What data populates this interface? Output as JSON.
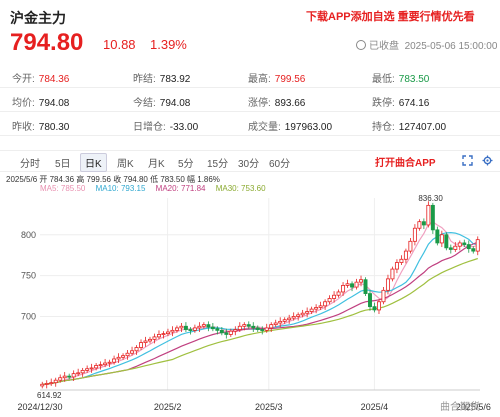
{
  "header": {
    "title": "沪金主力",
    "promo": "下载APP添加自选 重要行情优先看",
    "price": "794.80",
    "change": "10.88",
    "change_pct": "1.39%",
    "status": "已收盘",
    "datetime": "2025-05-06 15:00:00"
  },
  "stats": [
    [
      {
        "label": "今开:",
        "value": "784.36",
        "color": "red"
      },
      {
        "label": "昨结:",
        "value": "783.92",
        "color": ""
      },
      {
        "label": "最高:",
        "value": "799.56",
        "color": "red"
      },
      {
        "label": "最低:",
        "value": "783.50",
        "color": "green"
      }
    ],
    [
      {
        "label": "均价:",
        "value": "794.08",
        "color": ""
      },
      {
        "label": "今结:",
        "value": "794.08",
        "color": ""
      },
      {
        "label": "涨停:",
        "value": "893.66",
        "color": ""
      },
      {
        "label": "跌停:",
        "value": "674.16",
        "color": ""
      }
    ],
    [
      {
        "label": "昨收:",
        "value": "780.30",
        "color": ""
      },
      {
        "label": "日增仓:",
        "value": "-33.00",
        "color": ""
      },
      {
        "label": "成交量:",
        "value": "197963.00",
        "color": ""
      },
      {
        "label": "持仓:",
        "value": "127407.00",
        "color": ""
      }
    ]
  ],
  "tabs": [
    "分时",
    "5日",
    "日K",
    "周K",
    "月K",
    "5分",
    "15分",
    "30分",
    "60分"
  ],
  "active_tab": "日K",
  "open_app": "打开曲合APP",
  "chart_info": {
    "line1": "2025/5/6  开 784.36  高 799.56  收 794.80  低 783.50  幅 1.86%",
    "ma5": "MA5: 785.50",
    "ma10": "MA10: 793.15",
    "ma20": "MA20: 771.84",
    "ma30": "MA30: 753.60"
  },
  "watermark": "曲合期货",
  "colors": {
    "up": "#e62020",
    "down": "#1a9a48",
    "ma5": "#f0a0c0",
    "ma10": "#40c0e0",
    "ma20": "#c04080",
    "ma30": "#a0c040"
  },
  "chart_data": {
    "type": "candlestick",
    "x_ticks": [
      "2024/12/30",
      "2025/2",
      "2025/3",
      "2025/4",
      "2025/5/6"
    ],
    "y_ticks": [
      700,
      750,
      800
    ],
    "ylim": [
      610,
      845
    ],
    "annotations": [
      {
        "label": "836.30",
        "value": 836.3
      },
      {
        "label": "614.92",
        "value": 614.92
      }
    ],
    "closes": [
      617,
      618,
      619,
      622,
      625,
      627,
      626,
      630,
      631,
      634,
      636,
      637,
      640,
      641,
      643,
      644,
      648,
      650,
      652,
      655,
      658,
      662,
      668,
      670,
      672,
      675,
      678,
      679,
      681,
      683,
      686,
      688,
      684,
      683,
      686,
      688,
      690,
      687,
      685,
      683,
      680,
      678,
      682,
      684,
      688,
      690,
      688,
      686,
      684,
      683,
      686,
      690,
      692,
      694,
      696,
      698,
      700,
      702,
      704,
      706,
      709,
      711,
      713,
      718,
      722,
      726,
      730,
      738,
      740,
      736,
      742,
      745,
      728,
      712,
      708,
      718,
      732,
      746,
      758,
      766,
      770,
      780,
      792,
      808,
      816,
      812,
      836,
      806,
      790,
      800,
      784,
      782,
      786,
      790,
      788,
      783,
      780,
      794
    ]
  }
}
